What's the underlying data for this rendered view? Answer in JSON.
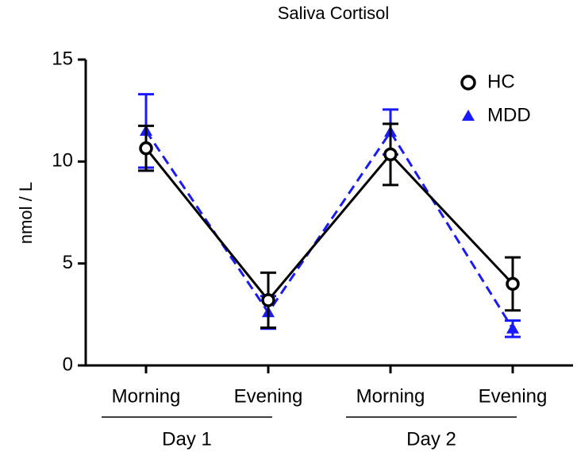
{
  "chart_data": {
    "type": "line",
    "title": "Saliva Cortisol",
    "y_label": "nmol / L",
    "categories": [
      "Morning",
      "Evening",
      "Morning",
      "Evening"
    ],
    "groups": [
      "Day 1",
      "Day 2"
    ],
    "ylim": [
      0,
      15
    ],
    "yticks": [
      0,
      5,
      10,
      15
    ],
    "legend": "top-right",
    "series": [
      {
        "name": "HC",
        "color": "#000000",
        "marker": "circle",
        "dashed": false,
        "values": [
          10.65,
          3.2,
          10.35,
          4.0
        ],
        "errors": [
          1.1,
          1.35,
          1.5,
          1.3
        ]
      },
      {
        "name": "MDD",
        "color": "#1a1aff",
        "marker": "triangle",
        "dashed": true,
        "values": [
          11.5,
          2.6,
          11.45,
          1.8
        ],
        "errors": [
          1.8,
          0.8,
          1.1,
          0.4
        ]
      }
    ]
  }
}
